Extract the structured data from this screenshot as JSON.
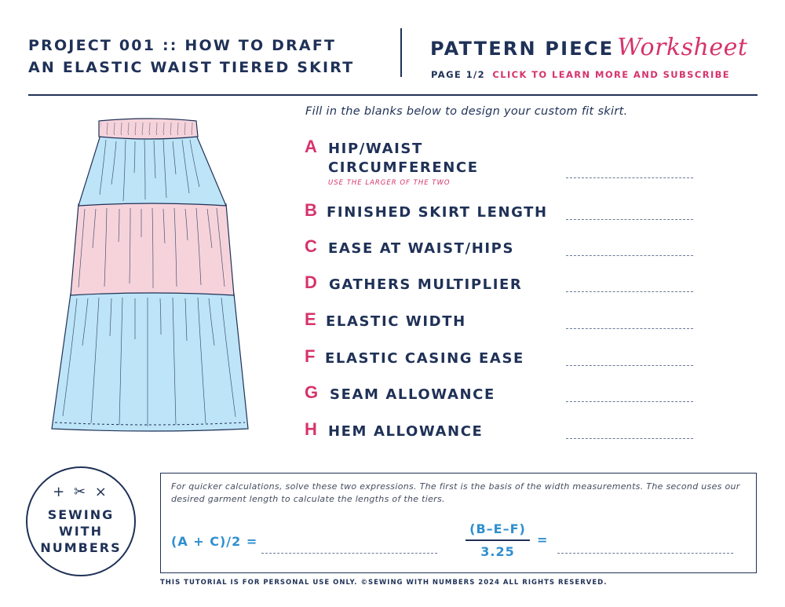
{
  "header": {
    "project_line1": "PROJECT 001 :: HOW TO DRAFT",
    "project_line2": "AN ELASTIC WAIST TIERED SKIRT",
    "worksheet_bold": "PATTERN PIECE",
    "worksheet_script": "Worksheet",
    "page": "PAGE 1/2",
    "link": "CLICK TO LEARN MORE AND SUBSCRIBE"
  },
  "instructions": "Fill in the blanks below to design your custom fit skirt.",
  "measurements": [
    {
      "letter": "A",
      "label_line1": "HIP/WAIST",
      "label_line2": "CIRCUMFERENCE",
      "note": "USE THE LARGER OF THE TWO"
    },
    {
      "letter": "B",
      "label": "FINISHED SKIRT LENGTH"
    },
    {
      "letter": "C",
      "label": "EASE AT WAIST/HIPS"
    },
    {
      "letter": "D",
      "label": "GATHERS MULTIPLIER"
    },
    {
      "letter": "E",
      "label": "ELASTIC WIDTH"
    },
    {
      "letter": "F",
      "label": "ELASTIC CASING EASE"
    },
    {
      "letter": "G",
      "label": "SEAM ALLOWANCE"
    },
    {
      "letter": "H",
      "label": "HEM ALLOWANCE"
    }
  ],
  "calculations": {
    "description": "For quicker calculations, solve these two expressions. The first is the basis of the width measurements. The second uses our desired garment length to calculate the lengths of the tiers.",
    "expr1": "(A + C)/2 =",
    "expr2_numerator": "(B–E–F)",
    "expr2_denominator": "3.25",
    "equals": "="
  },
  "logo": {
    "icons": "+ ✂ ×",
    "line1": "SEWING",
    "line2": "WITH",
    "line3": "NUMBERS"
  },
  "footer": "THIS TUTORIAL IS FOR PERSONAL USE ONLY. ©SEWING WITH NUMBERS 2024 ALL RIGHTS RESERVED.",
  "colors": {
    "navy": "#1f3157",
    "pink_accent": "#d6336c",
    "skirt_blue": "#bde4f7",
    "skirt_pink": "#f6d3db",
    "formula_blue": "#2f8fcf"
  }
}
